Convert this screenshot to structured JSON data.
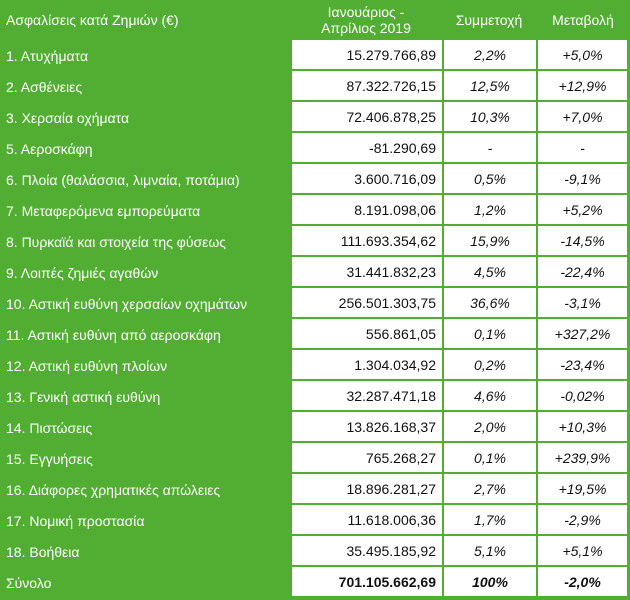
{
  "header": {
    "category": "Ασφαλίσεις κατά Ζημιών (€)",
    "period_line1": "Ιανουάριος -",
    "period_line2": "Απρίλιος 2019",
    "share": "Συμμετοχή",
    "change": "Μεταβολή"
  },
  "rows": [
    {
      "name": "1. Ατυχήματα",
      "value": "15.279.766,89",
      "share": "2,2%",
      "change": "+5,0%"
    },
    {
      "name": "2. Ασθένειες",
      "value": "87.322.726,15",
      "share": "12,5%",
      "change": "+12,9%"
    },
    {
      "name": "3. Χερσαία οχήματα",
      "value": "72.406.878,25",
      "share": "10,3%",
      "change": "+7,0%"
    },
    {
      "name": "5. Αεροσκάφη",
      "value": "-81.290,69",
      "share": "-",
      "change": "-"
    },
    {
      "name": "6. Πλοία (θαλάσσια, λιμναία, ποτάμια)",
      "value": "3.600.716,09",
      "share": "0,5%",
      "change": "-9,1%"
    },
    {
      "name": "7. Μεταφερόμενα εμπορεύματα",
      "value": "8.191.098,06",
      "share": "1,2%",
      "change": "+5,2%"
    },
    {
      "name": "8. Πυρκαϊά και στοιχεία της φύσεως",
      "value": "111.693.354,62",
      "share": "15,9%",
      "change": "-14,5%"
    },
    {
      "name": "9. Λοιπές ζημιές αγαθών",
      "value": "31.441.832,23",
      "share": "4,5%",
      "change": "-22,4%"
    },
    {
      "name": "10. Αστική ευθύνη χερσαίων οχημάτων",
      "value": "256.501.303,75",
      "share": "36,6%",
      "change": "-3,1%"
    },
    {
      "name": "11. Αστική ευθύνη από αεροσκάφη",
      "value": "556.861,05",
      "share": "0,1%",
      "change": "+327,2%"
    },
    {
      "name": "12. Αστική ευθύνη πλοίων",
      "value": "1.304.034,92",
      "share": "0,2%",
      "change": "-23,4%"
    },
    {
      "name": "13. Γενική αστική ευθύνη",
      "value": "32.287.471,18",
      "share": "4,6%",
      "change": "-0,02%"
    },
    {
      "name": "14. Πιστώσεις",
      "value": "13.826.168,37",
      "share": "2,0%",
      "change": "+10,3%"
    },
    {
      "name": "15. Εγγυήσεις",
      "value": "765.268,27",
      "share": "0,1%",
      "change": "+239,9%"
    },
    {
      "name": "16. Διάφορες χρηματικές απώλειες",
      "value": "18.896.281,27",
      "share": "2,7%",
      "change": "+19,5%"
    },
    {
      "name": "17. Νομική προστασία",
      "value": "11.618.006,36",
      "share": "1,7%",
      "change": "-2,9%"
    },
    {
      "name": "18. Βοήθεια",
      "value": "35.495.185,92",
      "share": "5,1%",
      "change": "+5,1%"
    }
  ],
  "total": {
    "name": "Σύνολο",
    "value": "701.105.662,69",
    "share": "100%",
    "change": "-2,0%"
  },
  "colors": {
    "background": "#52ae32",
    "cell": "#ffffff",
    "text": "#111111",
    "header_text": "#ffffff"
  }
}
